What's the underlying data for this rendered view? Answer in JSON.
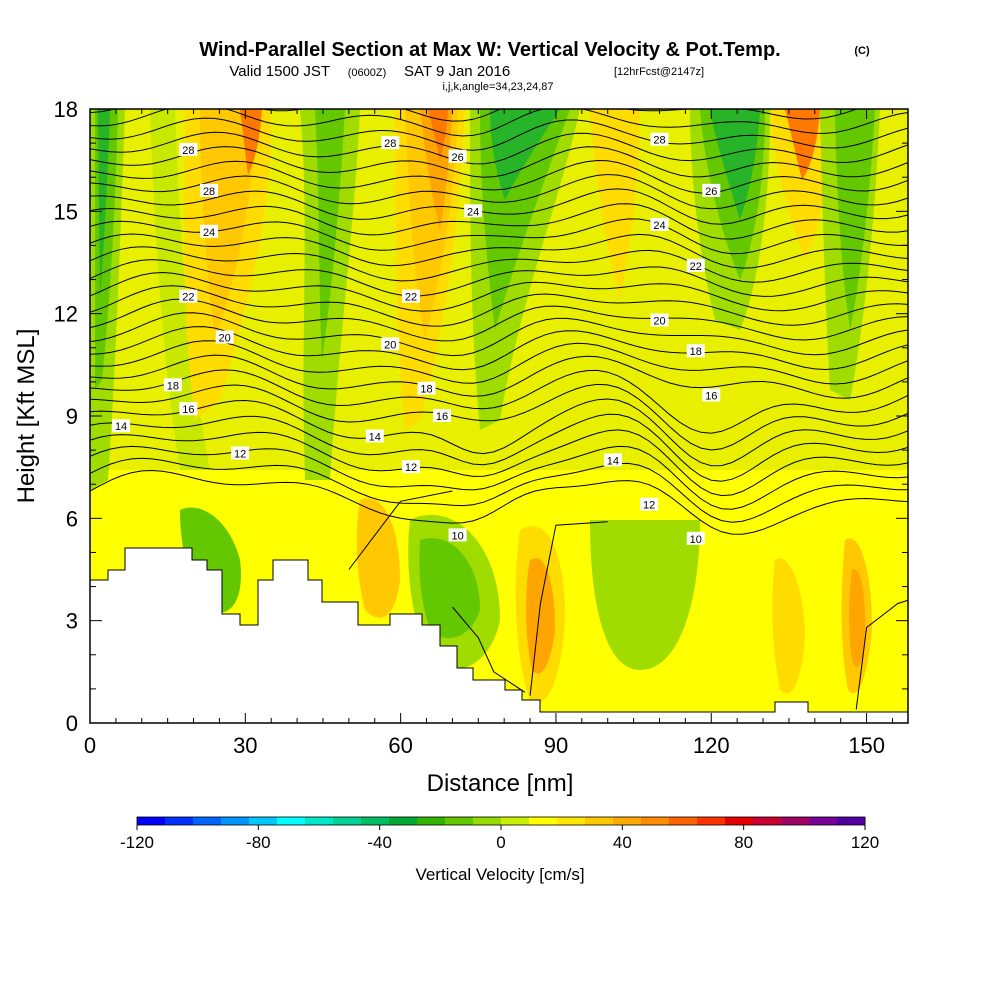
{
  "title": {
    "main": "Wind-Parallel Section at Max W: Vertical Velocity & Pot.Temp.",
    "copyright": "(C)",
    "valid_prefix": "Valid 1500 JST",
    "valid_zulu": "(0600Z)",
    "valid_date": "SAT 9 Jan 2016",
    "forecast": "[12hrFcst@2147z]",
    "params": "i,j,k,angle=34,23,24,87"
  },
  "colors": {
    "yellow": "#ffff00",
    "lightyellow": "#e8f000",
    "lightgreen": "#c8e800",
    "green1": "#a0dc00",
    "green2": "#64c800",
    "green3": "#28b428",
    "orange1": "#ffdc00",
    "orange2": "#ffc800",
    "orange3": "#ffa500",
    "orange4": "#ff7800",
    "terrain": "#ffffff",
    "contour": "#000000"
  },
  "chart_data": {
    "type": "heatmap",
    "xlabel": "Distance [nm]",
    "ylabel": "Height [Kft MSL]",
    "xlim": [
      0,
      158
    ],
    "ylim": [
      0,
      18
    ],
    "xticks": [
      0,
      30,
      60,
      90,
      120,
      150
    ],
    "yticks": [
      0,
      3,
      6,
      9,
      12,
      15,
      18
    ],
    "colorbar": {
      "label": "Vertical Velocity [cm/s]",
      "ticks": [
        -120,
        -80,
        -40,
        0,
        40,
        80,
        120
      ],
      "colors": [
        "#0000ff",
        "#0032ff",
        "#0064ff",
        "#0096ff",
        "#00c8ff",
        "#00ffff",
        "#00e6c8",
        "#00d296",
        "#00be64",
        "#00aa32",
        "#32b400",
        "#64c800",
        "#96dc00",
        "#c8f000",
        "#ffff00",
        "#ffe600",
        "#ffc800",
        "#ffaa00",
        "#ff8c00",
        "#ff6400",
        "#ff3200",
        "#e60000",
        "#c80032",
        "#a00064",
        "#780096",
        "#5000a0"
      ]
    },
    "potential_temperature_contours": {
      "levels": [
        10,
        12,
        14,
        16,
        18,
        20,
        22,
        24,
        26,
        28
      ],
      "labels": [
        {
          "value": 28,
          "x": 19,
          "y": 16.8
        },
        {
          "value": 28,
          "x": 23,
          "y": 15.6
        },
        {
          "value": 24,
          "x": 23,
          "y": 14.4
        },
        {
          "value": 22,
          "x": 19,
          "y": 12.5
        },
        {
          "value": 20,
          "x": 26,
          "y": 11.3
        },
        {
          "value": 18,
          "x": 16,
          "y": 9.9
        },
        {
          "value": 16,
          "x": 19,
          "y": 9.2
        },
        {
          "value": 14,
          "x": 6,
          "y": 8.7
        },
        {
          "value": 12,
          "x": 29,
          "y": 7.9
        },
        {
          "value": 28,
          "x": 58,
          "y": 17.0
        },
        {
          "value": 26,
          "x": 71,
          "y": 16.6
        },
        {
          "value": 24,
          "x": 74,
          "y": 15.0
        },
        {
          "value": 22,
          "x": 62,
          "y": 12.5
        },
        {
          "value": 20,
          "x": 58,
          "y": 11.1
        },
        {
          "value": 18,
          "x": 65,
          "y": 9.8
        },
        {
          "value": 16,
          "x": 68,
          "y": 9.0
        },
        {
          "value": 14,
          "x": 55,
          "y": 8.4
        },
        {
          "value": 12,
          "x": 62,
          "y": 7.5
        },
        {
          "value": 10,
          "x": 71,
          "y": 5.5
        },
        {
          "value": 28,
          "x": 110,
          "y": 17.1
        },
        {
          "value": 26,
          "x": 120,
          "y": 15.6
        },
        {
          "value": 24,
          "x": 110,
          "y": 14.6
        },
        {
          "value": 22,
          "x": 117,
          "y": 13.4
        },
        {
          "value": 20,
          "x": 110,
          "y": 11.8
        },
        {
          "value": 18,
          "x": 117,
          "y": 10.9
        },
        {
          "value": 16,
          "x": 120,
          "y": 9.6
        },
        {
          "value": 14,
          "x": 101,
          "y": 7.7
        },
        {
          "value": 12,
          "x": 108,
          "y": 6.4
        },
        {
          "value": 10,
          "x": 117,
          "y": 5.4
        }
      ]
    }
  }
}
